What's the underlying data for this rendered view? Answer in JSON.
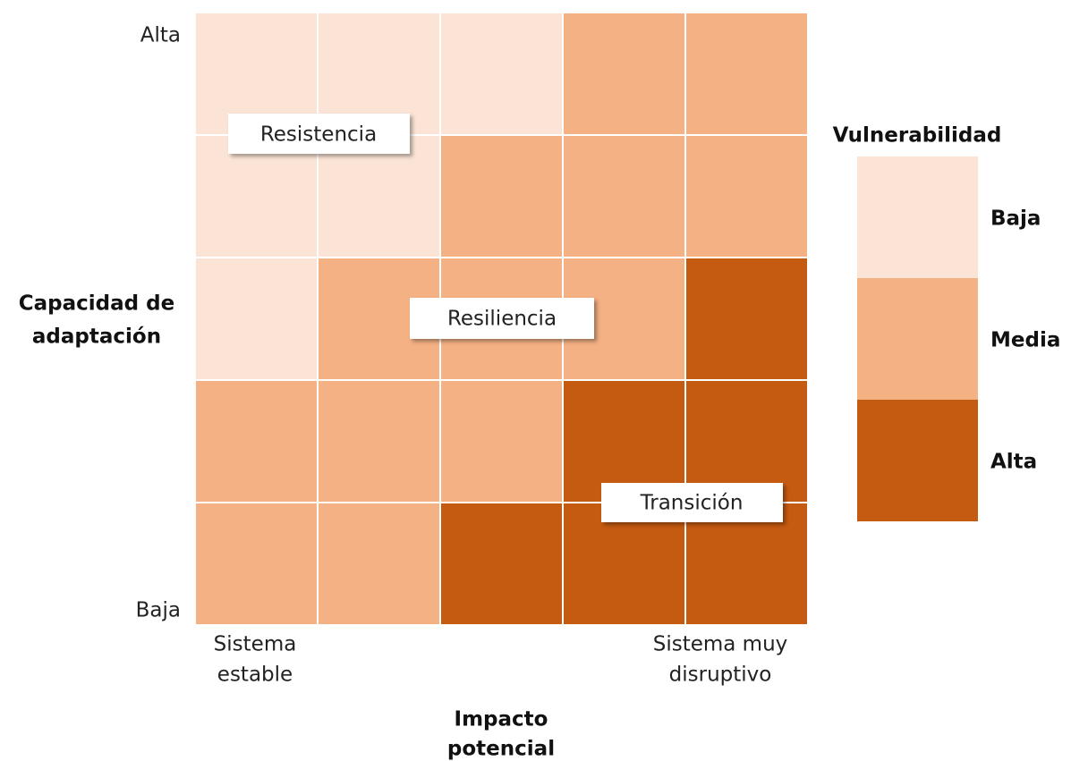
{
  "y_axis": {
    "title": [
      "Capacidad de",
      "adaptación"
    ],
    "top_label": "Alta",
    "bottom_label": "Baja"
  },
  "x_axis": {
    "title": [
      "Impacto",
      "potencial"
    ],
    "left_label": [
      "Sistema",
      "estable"
    ],
    "right_label": [
      "Sistema muy",
      "disruptivo"
    ]
  },
  "legend": {
    "title": "Vulnerabilidad",
    "levels": [
      {
        "label": "Baja",
        "color": "#fbe4d5"
      },
      {
        "label": "Media",
        "color": "#f4b183"
      },
      {
        "label": "Alta",
        "color": "#c55a11"
      }
    ]
  },
  "grid": [
    [
      0,
      0,
      0,
      1,
      1
    ],
    [
      0,
      0,
      1,
      1,
      1
    ],
    [
      0,
      1,
      1,
      1,
      2
    ],
    [
      1,
      1,
      1,
      2,
      2
    ],
    [
      1,
      1,
      2,
      2,
      2
    ]
  ],
  "zones": [
    {
      "label": "Resistencia"
    },
    {
      "label": "Resiliencia"
    },
    {
      "label": "Transición"
    }
  ]
}
